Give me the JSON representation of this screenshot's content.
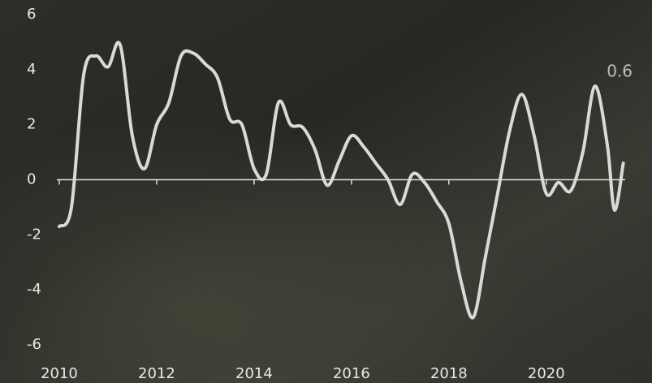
{
  "chart_data": {
    "type": "line",
    "x": [
      2010.0,
      2010.25,
      2010.5,
      2010.75,
      2011.0,
      2011.25,
      2011.5,
      2011.75,
      2012.0,
      2012.25,
      2012.5,
      2012.75,
      2013.0,
      2013.25,
      2013.5,
      2013.75,
      2014.0,
      2014.25,
      2014.5,
      2014.75,
      2015.0,
      2015.25,
      2015.5,
      2015.75,
      2016.0,
      2016.25,
      2016.5,
      2016.75,
      2017.0,
      2017.25,
      2017.5,
      2017.75,
      2018.0,
      2018.25,
      2018.5,
      2018.75,
      2019.0,
      2019.25,
      2019.5,
      2019.75,
      2020.0,
      2020.25,
      2020.5,
      2020.75,
      2021.0,
      2021.25,
      2021.4,
      2021.58
    ],
    "series": [
      {
        "color": "#d9d9d9",
        "values": [
          -1.7,
          -1.0,
          3.8,
          4.5,
          4.1,
          4.9,
          1.6,
          0.4,
          2.0,
          2.8,
          4.5,
          4.6,
          4.2,
          3.7,
          2.2,
          2.0,
          0.4,
          0.2,
          2.8,
          2.0,
          1.9,
          1.1,
          -0.2,
          0.7,
          1.6,
          1.2,
          0.6,
          0.0,
          -0.9,
          0.2,
          -0.1,
          -0.8,
          -1.6,
          -3.7,
          -5.0,
          -2.8,
          -0.5,
          1.8,
          3.1,
          1.6,
          -0.5,
          -0.1,
          -0.4,
          1.0,
          3.4,
          1.3,
          -1.1,
          0.6
        ]
      }
    ],
    "xlim": [
      2009.95,
      2021.62
    ],
    "xticks": [
      2010,
      2012,
      2014,
      2016,
      2018,
      2020
    ],
    "ylim": [
      -6,
      6
    ],
    "yticks": [
      -6,
      -4,
      -2,
      0,
      2,
      4,
      6
    ]
  }
}
